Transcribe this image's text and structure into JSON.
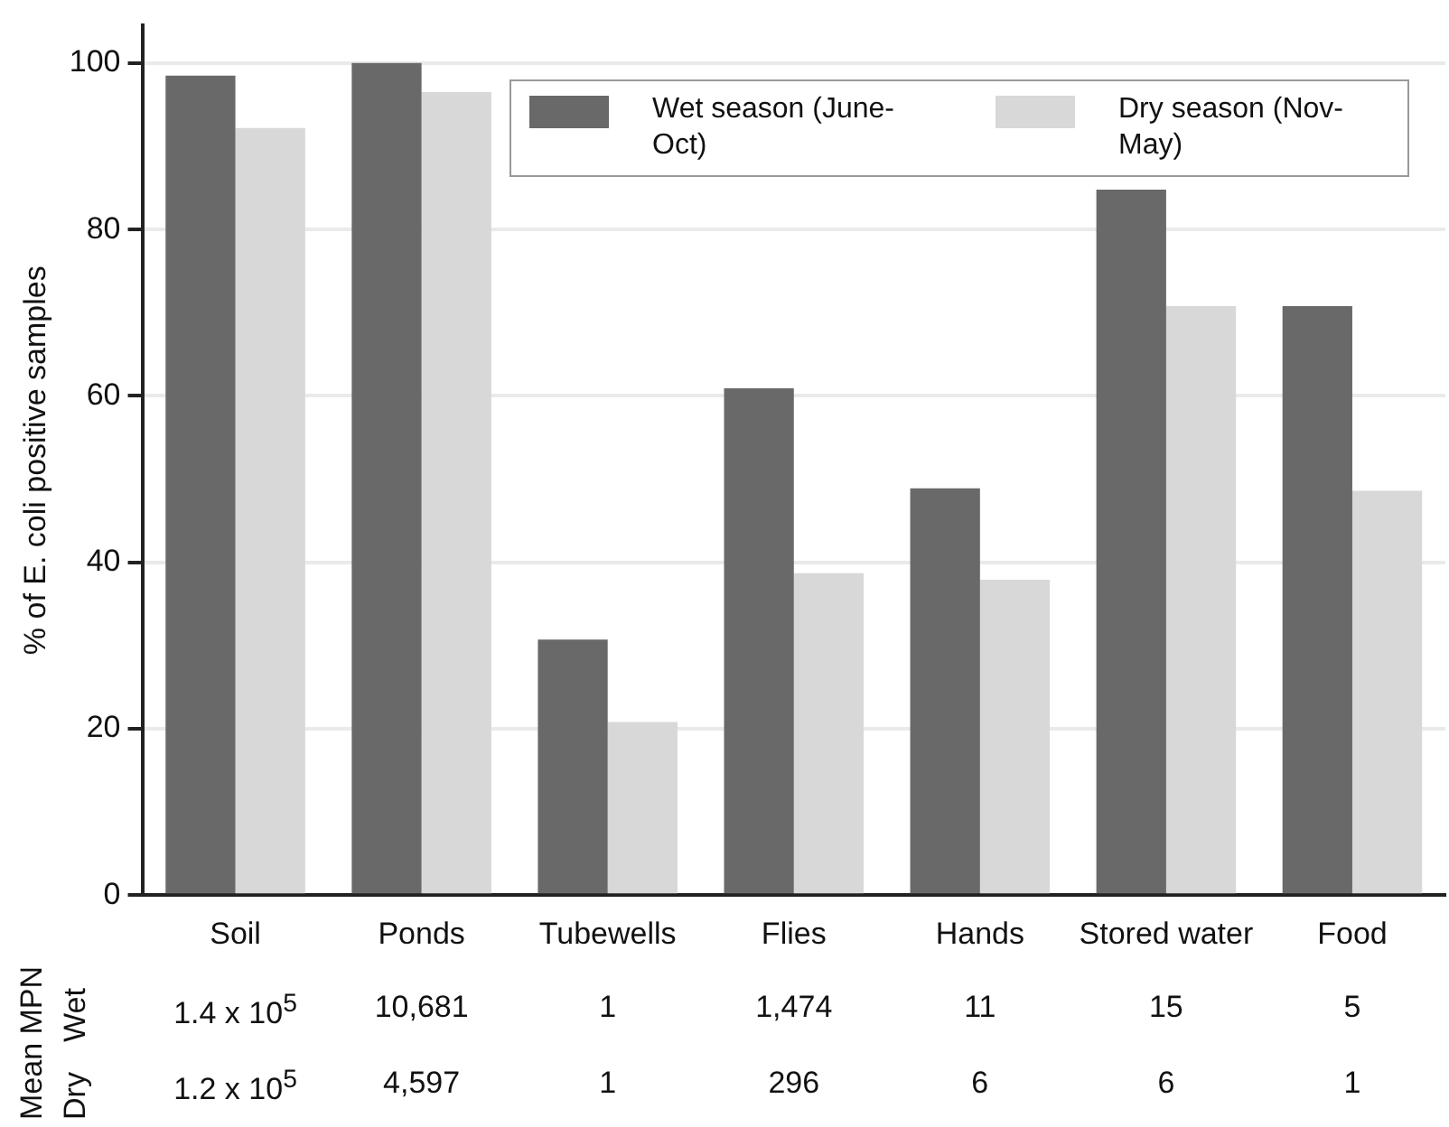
{
  "chart_data": {
    "type": "bar",
    "ylabel": "% of E. coli positive samples",
    "categories": [
      "Soil",
      "Ponds",
      "Tubewells",
      "Flies",
      "Hands",
      "Stored water",
      "Food"
    ],
    "series": [
      {
        "name": "Wet season (June-Oct)",
        "color": "#696969",
        "values": [
          98.5,
          100,
          30.7,
          60.9,
          48.9,
          84.8,
          70.8
        ]
      },
      {
        "name": "Dry season (Nov-May)",
        "color": "#d8d8d8",
        "values": [
          92.2,
          96.5,
          20.8,
          38.7,
          37.9,
          70.8,
          48.6
        ]
      }
    ],
    "ylim": [
      0,
      104.5
    ],
    "yticks": [
      0,
      20,
      40,
      60,
      80,
      100
    ],
    "grid": "y",
    "legend": "top right",
    "annotations": [
      "Mean MPN",
      "Wet",
      "Dry",
      "1.4 x 10$^{5}$",
      "10,681",
      "1",
      "1,474",
      "11",
      "15",
      "5",
      "1.2 x 10$^{5}$",
      "4,597",
      "1",
      "296",
      "6",
      "6",
      "1"
    ]
  }
}
